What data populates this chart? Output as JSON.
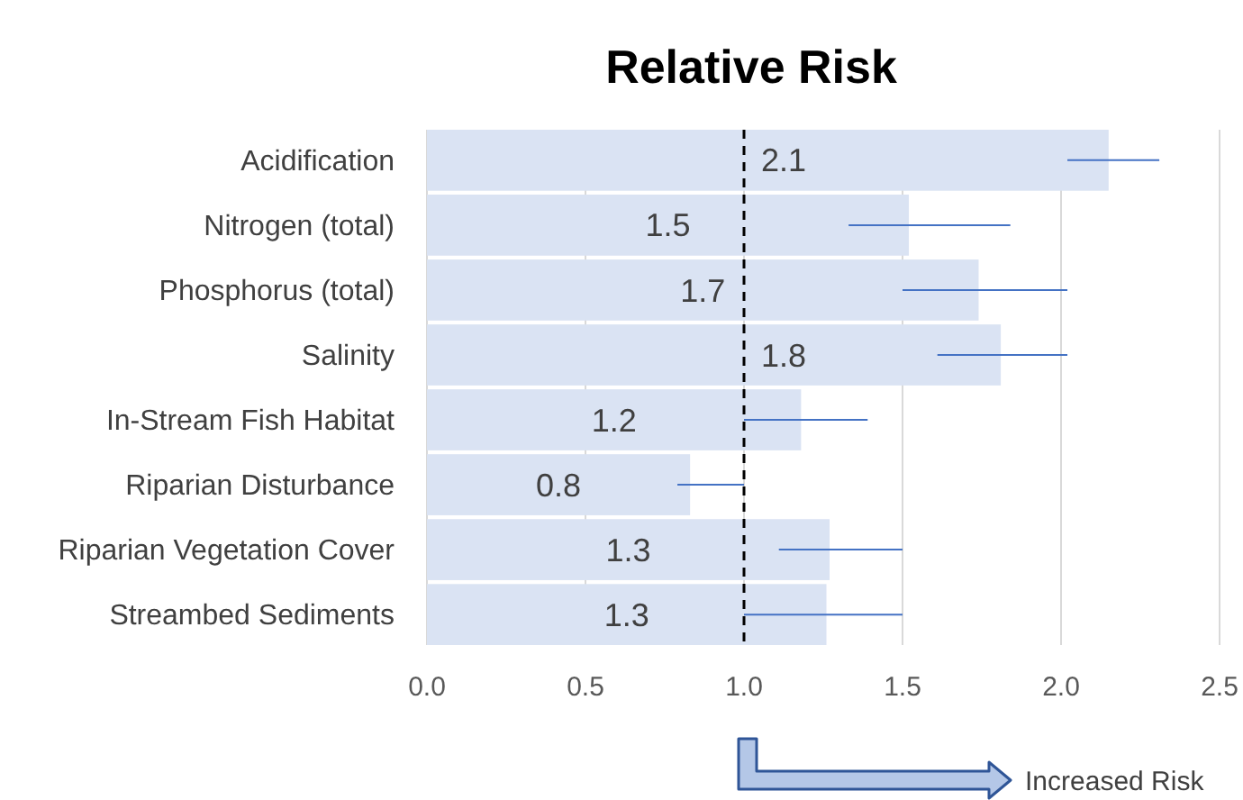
{
  "chart_data": {
    "type": "bar",
    "title": "Relative Risk",
    "orientation": "horizontal",
    "categories": [
      "Acidification",
      "Nitrogen (total)",
      "Phosphorus (total)",
      "Salinity",
      "In-Stream Fish Habitat",
      "Riparian Disturbance",
      "Riparian Vegetation Cover",
      "Streambed Sediments"
    ],
    "values": [
      2.15,
      1.52,
      1.74,
      1.81,
      1.18,
      0.83,
      1.27,
      1.26
    ],
    "value_labels": [
      "2.1",
      "1.5",
      "1.7",
      "1.8",
      "1.2",
      "0.8",
      "1.3",
      "1.3"
    ],
    "errors": [
      [
        2.02,
        2.31
      ],
      [
        1.33,
        1.84
      ],
      [
        1.5,
        2.02
      ],
      [
        1.61,
        2.02
      ],
      [
        1.0,
        1.39
      ],
      [
        0.79,
        1.0
      ],
      [
        1.11,
        1.5
      ],
      [
        1.0,
        1.5
      ]
    ],
    "color": "#dae3f3",
    "xlim": [
      0,
      2.5
    ],
    "xticks": [
      {
        "value": 0,
        "label": "0.0"
      },
      {
        "value": 0.5,
        "label": "0.5"
      },
      {
        "value": 1,
        "label": "1.0"
      },
      {
        "value": 1.5,
        "label": "1.5"
      },
      {
        "value": 2,
        "label": "2.0"
      },
      {
        "value": 2.5,
        "label": "2.5"
      }
    ],
    "grid": "x",
    "ref_lines": [
      {
        "axis": "x",
        "value": 1,
        "color": "#000000",
        "line_style": "dashed"
      }
    ],
    "annotations": [
      "Increased Risk"
    ]
  }
}
